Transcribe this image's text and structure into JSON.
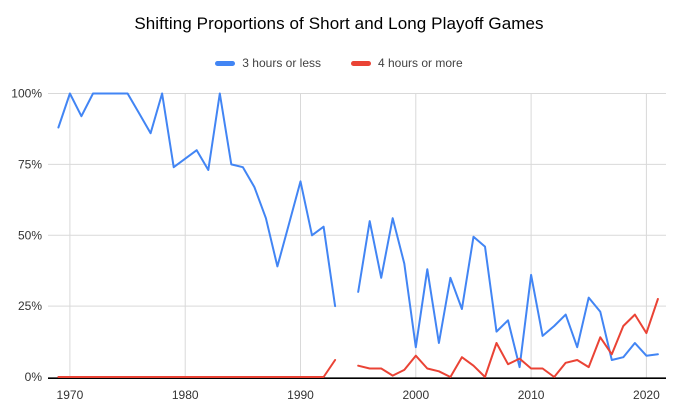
{
  "title": "Shifting Proportions of Short and Long Playoff Games",
  "colors": {
    "series_blue": "#4285f4",
    "series_red": "#ea4335",
    "grid": "#d9d9d9",
    "axis": "#000000",
    "tick_text": "#333333",
    "legend_text": "#424242",
    "background": "#ffffff"
  },
  "legend": {
    "items": [
      {
        "label": "3 hours or less",
        "color": "#4285f4"
      },
      {
        "label": "4 hours or more",
        "color": "#ea4335"
      }
    ]
  },
  "chart_data": {
    "type": "line",
    "title": "Shifting Proportions of Short and Long Playoff Games",
    "xlabel": "",
    "ylabel": "",
    "grid": true,
    "legend_position": "top",
    "xlim": [
      1968.1,
      2021.7
    ],
    "ylim": [
      0,
      100
    ],
    "x_ticks": [
      1970,
      1980,
      1990,
      2000,
      2010,
      2020
    ],
    "x_tick_labels": [
      "1970",
      "1980",
      "1990",
      "2000",
      "2010",
      "2020"
    ],
    "y_ticks": [
      0,
      25,
      50,
      75,
      100
    ],
    "y_tick_labels": [
      "0%",
      "25%",
      "50%",
      "75%",
      "100%"
    ],
    "gap_years": [
      1994
    ],
    "x": [
      1969,
      1970,
      1971,
      1972,
      1973,
      1974,
      1975,
      1976,
      1977,
      1978,
      1979,
      1980,
      1981,
      1982,
      1983,
      1984,
      1985,
      1986,
      1987,
      1988,
      1989,
      1990,
      1991,
      1992,
      1993,
      1994,
      1995,
      1996,
      1997,
      1998,
      1999,
      2000,
      2001,
      2002,
      2003,
      2004,
      2005,
      2006,
      2007,
      2008,
      2009,
      2010,
      2011,
      2012,
      2013,
      2014,
      2015,
      2016,
      2017,
      2018,
      2019,
      2020,
      2021
    ],
    "series": [
      {
        "name": "3 hours or less",
        "color": "#4285f4",
        "values": [
          88,
          100,
          92,
          100,
          100,
          100,
          100,
          93,
          86,
          100,
          74,
          77,
          80,
          73,
          100,
          75,
          74,
          67,
          56,
          39,
          54,
          69,
          50,
          53,
          25,
          null,
          30,
          55,
          35,
          56,
          40,
          10.5,
          38,
          12,
          35,
          24,
          49.5,
          46,
          16,
          20,
          3.5,
          36,
          14.5,
          18,
          22,
          10.5,
          28,
          23,
          6,
          7,
          12,
          7.5,
          8
        ]
      },
      {
        "name": "4 hours or more",
        "color": "#ea4335",
        "values": [
          0,
          0,
          0,
          0,
          0,
          0,
          0,
          0,
          0,
          0,
          0,
          0,
          0,
          0,
          0,
          0,
          0,
          0,
          0,
          0,
          0,
          0,
          0,
          0,
          6,
          null,
          4,
          3,
          3,
          0.5,
          2.5,
          7.5,
          3,
          2,
          0,
          7,
          4,
          0,
          12,
          4.5,
          6.5,
          3,
          3,
          0,
          5,
          6,
          3.5,
          14,
          8,
          18,
          22,
          15.5,
          27.5
        ]
      }
    ]
  }
}
